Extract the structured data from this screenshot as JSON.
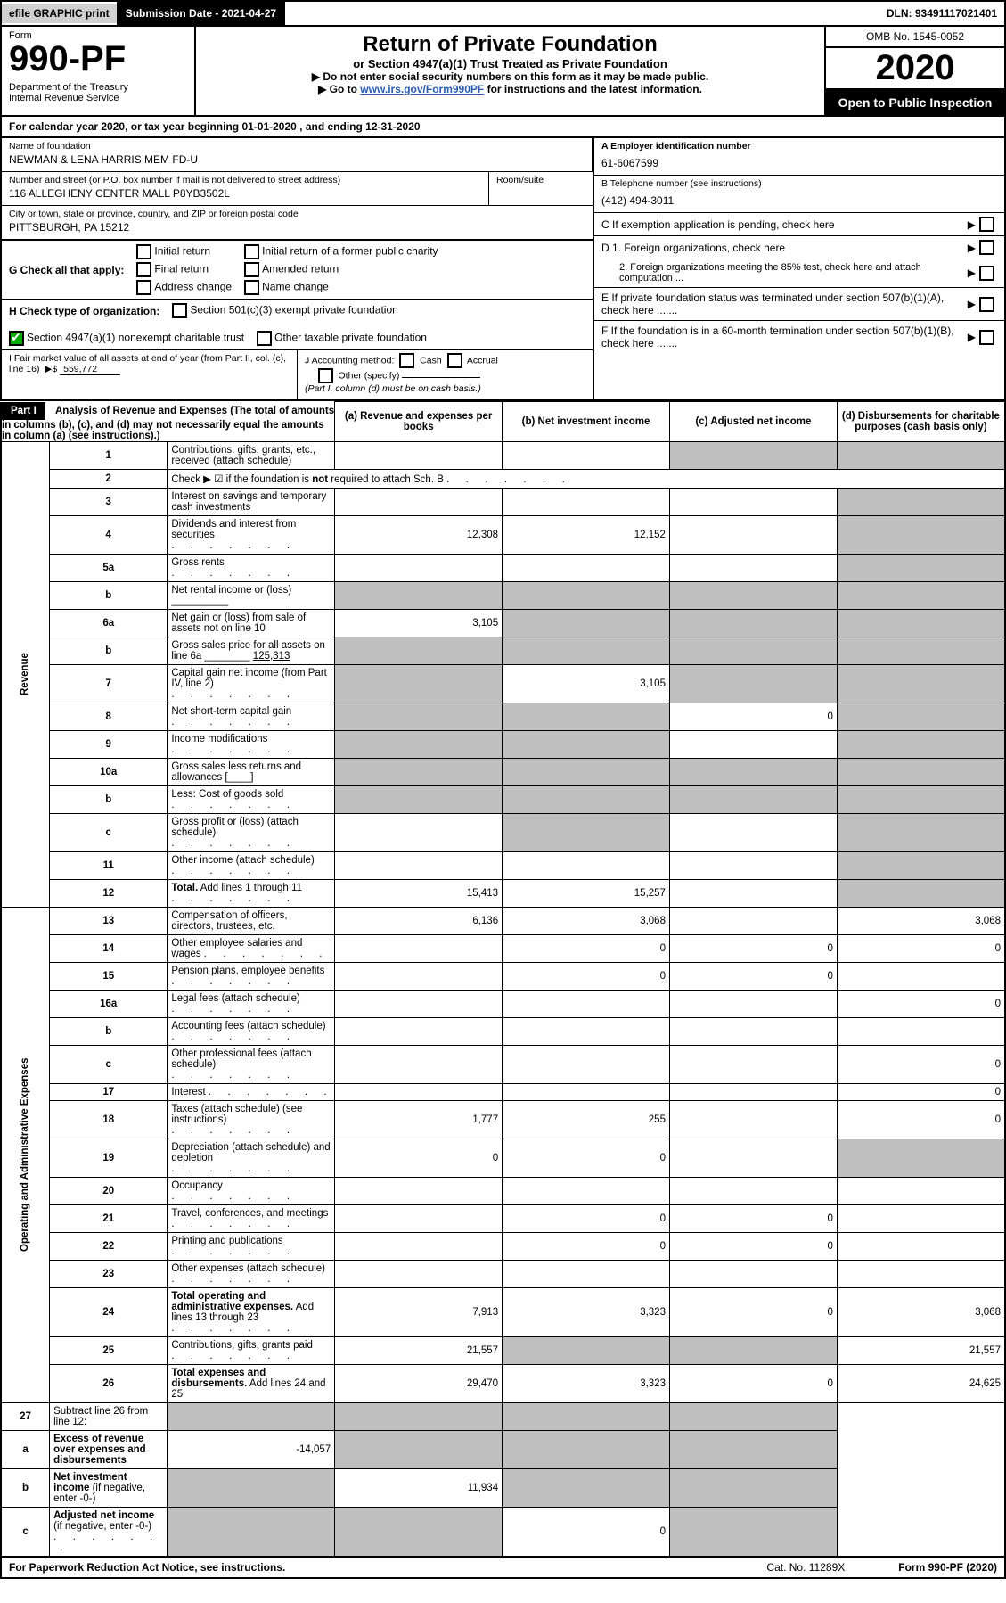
{
  "top": {
    "efile": "efile GRAPHIC print",
    "submission": "Submission Date - 2021-04-27",
    "dln": "DLN: 93491117021401"
  },
  "header": {
    "form_word": "Form",
    "form_no": "990-PF",
    "dept": "Department of the Treasury\nInternal Revenue Service",
    "title": "Return of Private Foundation",
    "subtitle": "or Section 4947(a)(1) Trust Treated as Private Foundation",
    "note1": "Do not enter social security numbers on this form as it may be made public.",
    "note2_pre": "Go to ",
    "note2_link": "www.irs.gov/Form990PF",
    "note2_post": " for instructions and the latest information.",
    "omb": "OMB No. 1545-0052",
    "year": "2020",
    "open": "Open to Public Inspection"
  },
  "cal": "For calendar year 2020, or tax year beginning 01-01-2020            , and ending 12-31-2020",
  "id": {
    "name_lbl": "Name of foundation",
    "name": "NEWMAN & LENA HARRIS MEM FD-U",
    "addr_lbl": "Number and street (or P.O. box number if mail is not delivered to street address)",
    "addr": "116 ALLEGHENY CENTER MALL P8YB3502L",
    "suite_lbl": "Room/suite",
    "city_lbl": "City or town, state or province, country, and ZIP or foreign postal code",
    "city": "PITTSBURGH, PA  15212",
    "a_lbl": "A Employer identification number",
    "a_val": "61-6067599",
    "b_lbl": "B Telephone number (see instructions)",
    "b_val": "(412) 494-3011",
    "c_lbl": "C If exemption application is pending, check here",
    "g_lbl": "G Check all that apply:",
    "g_opts": [
      "Initial return",
      "Final return",
      "Address change",
      "Initial return of a former public charity",
      "Amended return",
      "Name change"
    ],
    "h_lbl": "H Check type of organization:",
    "h_opts": [
      "Section 501(c)(3) exempt private foundation",
      "Section 4947(a)(1) nonexempt charitable trust",
      "Other taxable private foundation"
    ],
    "i_lbl": "I Fair market value of all assets at end of year (from Part II, col. (c), line 16)",
    "i_val": "559,772",
    "j_lbl": "J Accounting method:",
    "j_opts": [
      "Cash",
      "Accrual",
      "Other (specify)"
    ],
    "j_note": "(Part I, column (d) must be on cash basis.)",
    "d1": "D 1. Foreign organizations, check here",
    "d2": "2. Foreign organizations meeting the 85% test, check here and attach computation ...",
    "e": "E  If private foundation status was terminated under section 507(b)(1)(A), check here .......",
    "f": "F  If the foundation is in a 60-month termination under section 507(b)(1)(B), check here ......."
  },
  "part1": {
    "label": "Part I",
    "title": "Analysis of Revenue and Expenses",
    "title_note": "(The total of amounts in columns (b), (c), and (d) may not necessarily equal the amounts in column (a) (see instructions).)",
    "col_a": "(a)  Revenue and expenses per books",
    "col_b": "(b)  Net investment income",
    "col_c": "(c)  Adjusted net income",
    "col_d": "(d)  Disbursements for charitable purposes (cash basis only)"
  },
  "side": {
    "rev": "Revenue",
    "exp": "Operating and Administrative Expenses"
  },
  "rows": [
    {
      "n": "1",
      "lab": "Contributions, gifts, grants, etc., received (attach schedule)",
      "a": "",
      "b": "",
      "c": "S",
      "d": "S"
    },
    {
      "n": "2",
      "lab": "Check ▶ ☑ if the foundation is <b>not</b> required to attach Sch. B",
      "dots": true,
      "nocols": true
    },
    {
      "n": "3",
      "lab": "Interest on savings and temporary cash investments",
      "a": "",
      "b": "",
      "c": "",
      "d": "S"
    },
    {
      "n": "4",
      "lab": "Dividends and interest from securities",
      "dots": true,
      "a": "12,308",
      "b": "12,152",
      "c": "",
      "d": "S"
    },
    {
      "n": "5a",
      "lab": "Gross rents",
      "dots": true,
      "a": "",
      "b": "",
      "c": "",
      "d": "S"
    },
    {
      "n": "b",
      "lab": "Net rental income or (loss)  __________",
      "a": "S",
      "b": "S",
      "c": "S",
      "d": "S"
    },
    {
      "n": "6a",
      "lab": "Net gain or (loss) from sale of assets not on line 10",
      "a": "3,105",
      "b": "S",
      "c": "S",
      "d": "S"
    },
    {
      "n": "b",
      "lab": "Gross sales price for all assets on line 6a  ________ <u>125,313</u>",
      "a": "S",
      "b": "S",
      "c": "S",
      "d": "S"
    },
    {
      "n": "7",
      "lab": "Capital gain net income (from Part IV, line 2)",
      "dots": true,
      "a": "S",
      "b": "3,105",
      "c": "S",
      "d": "S"
    },
    {
      "n": "8",
      "lab": "Net short-term capital gain",
      "dots": true,
      "a": "S",
      "b": "S",
      "c": "0",
      "d": "S"
    },
    {
      "n": "9",
      "lab": "Income modifications",
      "dots": true,
      "a": "S",
      "b": "S",
      "c": "",
      "d": "S"
    },
    {
      "n": "10a",
      "lab": "Gross sales less returns and allowances  [____]",
      "a": "S",
      "b": "S",
      "c": "S",
      "d": "S"
    },
    {
      "n": "b",
      "lab": "Less: Cost of goods sold",
      "dots": true,
      "mid": "[____]",
      "a": "S",
      "b": "S",
      "c": "S",
      "d": "S"
    },
    {
      "n": "c",
      "lab": "Gross profit or (loss) (attach schedule)",
      "dots": true,
      "a": "",
      "b": "S",
      "c": "",
      "d": "S"
    },
    {
      "n": "11",
      "lab": "Other income (attach schedule)",
      "dots": true,
      "a": "",
      "b": "",
      "c": "",
      "d": "S"
    },
    {
      "n": "12",
      "lab": "<b>Total.</b> Add lines 1 through 11",
      "dots": true,
      "a": "15,413",
      "b": "15,257",
      "c": "",
      "d": "S"
    }
  ],
  "rows2": [
    {
      "n": "13",
      "lab": "Compensation of officers, directors, trustees, etc.",
      "a": "6,136",
      "b": "3,068",
      "c": "",
      "d": "3,068"
    },
    {
      "n": "14",
      "lab": "Other employee salaries and wages",
      "dots": true,
      "a": "",
      "b": "0",
      "c": "0",
      "d": "0"
    },
    {
      "n": "15",
      "lab": "Pension plans, employee benefits",
      "dots": true,
      "a": "",
      "b": "0",
      "c": "0",
      "d": ""
    },
    {
      "n": "16a",
      "lab": "Legal fees (attach schedule)",
      "dots": true,
      "a": "",
      "b": "",
      "c": "",
      "d": "0"
    },
    {
      "n": "b",
      "lab": "Accounting fees (attach schedule)",
      "dots": true,
      "a": "",
      "b": "",
      "c": "",
      "d": ""
    },
    {
      "n": "c",
      "lab": "Other professional fees (attach schedule)",
      "dots": true,
      "a": "",
      "b": "",
      "c": "",
      "d": "0"
    },
    {
      "n": "17",
      "lab": "Interest",
      "dots": true,
      "a": "",
      "b": "",
      "c": "",
      "d": "0"
    },
    {
      "n": "18",
      "lab": "Taxes (attach schedule) (see instructions)",
      "dots": true,
      "a": "1,777",
      "b": "255",
      "c": "",
      "d": "0"
    },
    {
      "n": "19",
      "lab": "Depreciation (attach schedule) and depletion",
      "dots": true,
      "a": "0",
      "b": "0",
      "c": "",
      "d": "S"
    },
    {
      "n": "20",
      "lab": "Occupancy",
      "dots": true,
      "a": "",
      "b": "",
      "c": "",
      "d": ""
    },
    {
      "n": "21",
      "lab": "Travel, conferences, and meetings",
      "dots": true,
      "a": "",
      "b": "0",
      "c": "0",
      "d": ""
    },
    {
      "n": "22",
      "lab": "Printing and publications",
      "dots": true,
      "a": "",
      "b": "0",
      "c": "0",
      "d": ""
    },
    {
      "n": "23",
      "lab": "Other expenses (attach schedule)",
      "dots": true,
      "a": "",
      "b": "",
      "c": "",
      "d": ""
    },
    {
      "n": "24",
      "lab": "<b>Total operating and administrative expenses.</b> Add lines 13 through 23",
      "dots": true,
      "a": "7,913",
      "b": "3,323",
      "c": "0",
      "d": "3,068"
    },
    {
      "n": "25",
      "lab": "Contributions, gifts, grants paid",
      "dots": true,
      "a": "21,557",
      "b": "S",
      "c": "S",
      "d": "21,557"
    },
    {
      "n": "26",
      "lab": "<b>Total expenses and disbursements.</b> Add lines 24 and 25",
      "a": "29,470",
      "b": "3,323",
      "c": "0",
      "d": "24,625"
    }
  ],
  "rows3": [
    {
      "n": "27",
      "lab": "Subtract line 26 from line 12:",
      "a": "S",
      "b": "S",
      "c": "S",
      "d": "S"
    },
    {
      "n": "a",
      "lab": "<b>Excess of revenue over expenses and disbursements</b>",
      "a": "-14,057",
      "b": "S",
      "c": "S",
      "d": "S"
    },
    {
      "n": "b",
      "lab": "<b>Net investment income</b> (if negative, enter -0-)",
      "a": "S",
      "b": "11,934",
      "c": "S",
      "d": "S"
    },
    {
      "n": "c",
      "lab": "<b>Adjusted net income</b> (if negative, enter -0-)",
      "dots": true,
      "a": "S",
      "b": "S",
      "c": "0",
      "d": "S"
    }
  ],
  "foot": {
    "left": "For Paperwork Reduction Act Notice, see instructions.",
    "mid": "Cat. No. 11289X",
    "right": "Form 990-PF (2020)"
  }
}
